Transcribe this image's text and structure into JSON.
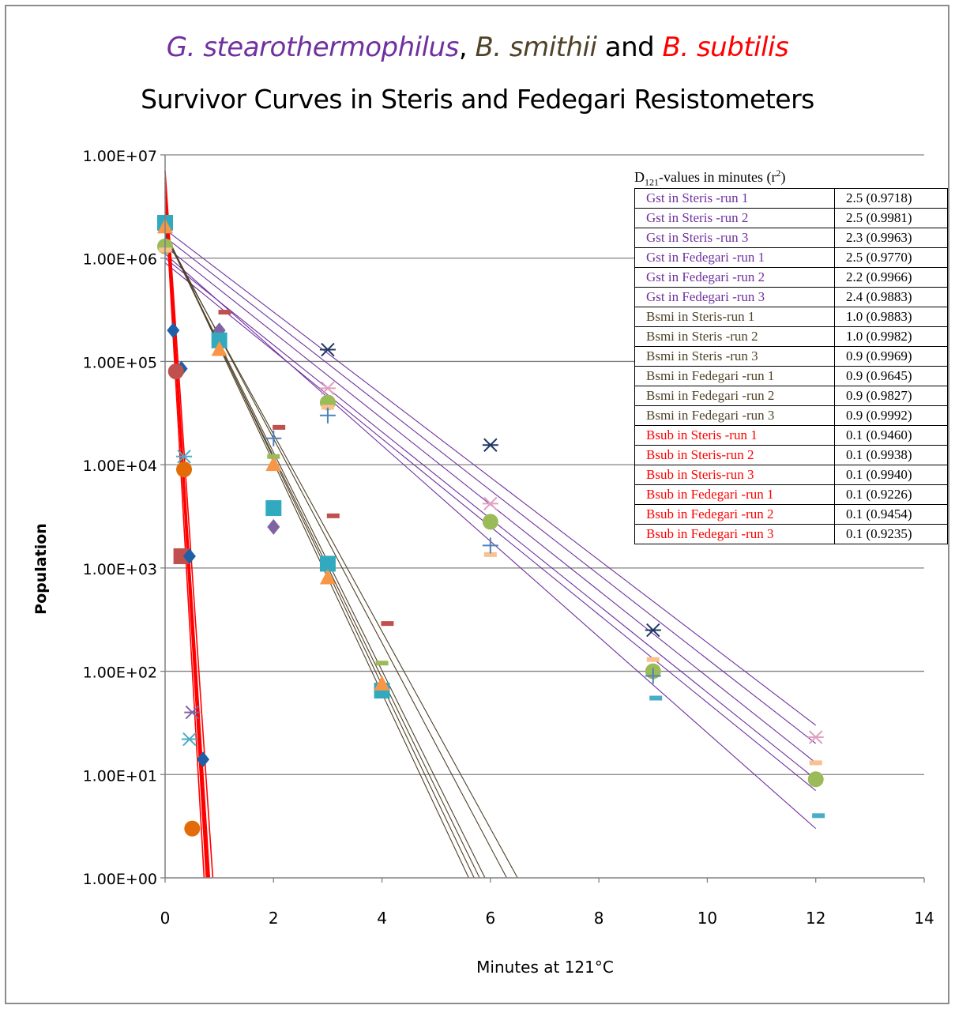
{
  "title": {
    "line1": {
      "species1": "G. stearothermophilus",
      "sep1": ", ",
      "species2": "B. smithii",
      "sep2": " and ",
      "species3": "B. subtilis"
    },
    "line2": "Survivor Curves in Steris and Fedegari Resistometers"
  },
  "colors": {
    "gst": "#7030a0",
    "bsmi": "#4f4228",
    "bsub": "#ff0000",
    "grid": "#808080"
  },
  "chart_data": {
    "type": "scatter",
    "x_scale": "linear",
    "y_scale": "log",
    "xlabel": "Minutes at 121°C",
    "ylabel": "Population",
    "xlim": [
      0,
      14
    ],
    "ylim": [
      1,
      10000000
    ],
    "x_ticks": [
      "0",
      "2",
      "4",
      "6",
      "8",
      "10",
      "12",
      "14"
    ],
    "y_ticks": [
      "1.00E+00",
      "1.00E+01",
      "1.00E+02",
      "1.00E+03",
      "1.00E+04",
      "1.00E+05",
      "1.00E+06",
      "1.00E+07"
    ],
    "grid": "horizontal",
    "legend": {
      "caption": {
        "main": "D",
        "sub": "121",
        "rest": "-values in minutes (r",
        "sup": "2",
        "end": ")"
      },
      "placement": "top-right",
      "rows": [
        {
          "name": "Gst in Steris -run 1",
          "value": "2.5 (0.9718)",
          "group": "gst"
        },
        {
          "name": "Gst in Steris -run 2",
          "value": "2.5 (0.9981)",
          "group": "gst"
        },
        {
          "name": "Gst in Steris -run 3",
          "value": "2.3 (0.9963)",
          "group": "gst"
        },
        {
          "name": "Gst in Fedegari -run 1",
          "value": "2.5 (0.9770)",
          "group": "gst"
        },
        {
          "name": "Gst in Fedegari -run 2",
          "value": "2.2 (0.9966)",
          "group": "gst"
        },
        {
          "name": "Gst in Fedegari -run 3",
          "value": "2.4 (0.9883)",
          "group": "gst"
        },
        {
          "name": "Bsmi in Steris-run 1",
          "value": "1.0 (0.9883)",
          "group": "bsmi"
        },
        {
          "name": "Bsmi in Steris -run 2",
          "value": "1.0 (0.9982)",
          "group": "bsmi"
        },
        {
          "name": "Bsmi in Steris -run 3",
          "value": "0.9 (0.9969)",
          "group": "bsmi"
        },
        {
          "name": "Bsmi in Fedegari -run 1",
          "value": "0.9 (0.9645)",
          "group": "bsmi"
        },
        {
          "name": "Bsmi in Fedegari -run 2",
          "value": "0.9 (0.9827)",
          "group": "bsmi"
        },
        {
          "name": "Bsmi in Fedegari -run 3",
          "value": "0.9 (0.9992)",
          "group": "bsmi"
        },
        {
          "name": "Bsub in Steris -run 1",
          "value": "0.1 (0.9460)",
          "group": "bsub"
        },
        {
          "name": "Bsub in Steris-run 2",
          "value": "0.1 (0.9938)",
          "group": "bsub"
        },
        {
          "name": "Bsub in Steris-run 3",
          "value": "0.1 (0.9940)",
          "group": "bsub"
        },
        {
          "name": "Bsub in Fedegari -run 1",
          "value": "0.1 (0.9226)",
          "group": "bsub"
        },
        {
          "name": "Bsub in Fedegari -run 2",
          "value": "0.1 (0.9454)",
          "group": "bsub"
        },
        {
          "name": "Bsub in Fedegari -run 3",
          "value": "0.1 (0.9235)",
          "group": "bsub"
        }
      ]
    },
    "trendlines": [
      {
        "group": "gst",
        "x": [
          0,
          12
        ],
        "y": [
          1900000,
          30
        ]
      },
      {
        "group": "gst",
        "x": [
          0,
          12
        ],
        "y": [
          1600000,
          20
        ]
      },
      {
        "group": "gst",
        "x": [
          0,
          12
        ],
        "y": [
          1300000,
          13
        ]
      },
      {
        "group": "gst",
        "x": [
          0,
          12
        ],
        "y": [
          1000000,
          9
        ]
      },
      {
        "group": "gst",
        "x": [
          0,
          12
        ],
        "y": [
          900000,
          7
        ]
      },
      {
        "group": "gst",
        "x": [
          0,
          12
        ],
        "y": [
          1100000,
          3
        ]
      },
      {
        "group": "bsmi",
        "x": [
          0,
          6.5
        ],
        "y": [
          1600000,
          1
        ]
      },
      {
        "group": "bsmi",
        "x": [
          0,
          6.3
        ],
        "y": [
          1700000,
          1
        ]
      },
      {
        "group": "bsmi",
        "x": [
          0,
          5.9
        ],
        "y": [
          1700000,
          1
        ]
      },
      {
        "group": "bsmi",
        "x": [
          0,
          5.6
        ],
        "y": [
          1800000,
          1
        ]
      },
      {
        "group": "bsmi",
        "x": [
          0,
          5.7
        ],
        "y": [
          1800000,
          1
        ]
      },
      {
        "group": "bsmi",
        "x": [
          0,
          5.8
        ],
        "y": [
          1700000,
          1
        ]
      },
      {
        "group": "bsub",
        "x": [
          0,
          0.88
        ],
        "y": [
          7000000,
          1
        ]
      },
      {
        "group": "bsub",
        "x": [
          0,
          0.82
        ],
        "y": [
          6000000,
          1
        ]
      },
      {
        "group": "bsub",
        "x": [
          0,
          0.78
        ],
        "y": [
          5000000,
          1
        ]
      },
      {
        "group": "bsub",
        "x": [
          0,
          0.72
        ],
        "y": [
          4000000,
          1
        ]
      },
      {
        "group": "bsub",
        "x": [
          0,
          0.76
        ],
        "y": [
          5500000,
          1
        ]
      },
      {
        "group": "bsub",
        "x": [
          0,
          0.8
        ],
        "y": [
          4500000,
          1
        ]
      }
    ],
    "points": [
      {
        "x": 0,
        "y": 2200000,
        "shape": "square",
        "color": "#31a9bf"
      },
      {
        "x": 0,
        "y": 2000000,
        "shape": "triangle",
        "color": "#f79646"
      },
      {
        "x": 0,
        "y": 1300000,
        "shape": "circle",
        "color": "#9bbb59"
      },
      {
        "x": 0,
        "y": 1200000,
        "shape": "dash",
        "color": "#fac090"
      },
      {
        "x": 0.15,
        "y": 200000,
        "shape": "diamond",
        "color": "#1f5fa8"
      },
      {
        "x": 0.3,
        "y": 85000,
        "shape": "diamond",
        "color": "#1f5fa8"
      },
      {
        "x": 0.2,
        "y": 80000,
        "shape": "circle",
        "color": "#c0504d"
      },
      {
        "x": 0.35,
        "y": 9000,
        "shape": "circle",
        "color": "#e36c09"
      },
      {
        "x": 0.35,
        "y": 12000,
        "shape": "x",
        "color": "#4bacc6"
      },
      {
        "x": 0.3,
        "y": 1300,
        "shape": "square",
        "color": "#c0504d"
      },
      {
        "x": 0.45,
        "y": 1300,
        "shape": "diamond",
        "color": "#1f5fa8"
      },
      {
        "x": 0.5,
        "y": 40,
        "shape": "x",
        "color": "#8064a2"
      },
      {
        "x": 0.45,
        "y": 22,
        "shape": "x",
        "color": "#4bacc6"
      },
      {
        "x": 0.7,
        "y": 14,
        "shape": "diamond",
        "color": "#1f5fa8"
      },
      {
        "x": 0.5,
        "y": 3,
        "shape": "circle",
        "color": "#e36c09"
      },
      {
        "x": 1,
        "y": 200000,
        "shape": "diamond",
        "color": "#8064a2"
      },
      {
        "x": 1,
        "y": 160000,
        "shape": "square",
        "color": "#31a9bf"
      },
      {
        "x": 1,
        "y": 130000,
        "shape": "triangle",
        "color": "#f79646"
      },
      {
        "x": 1.1,
        "y": 300000,
        "shape": "dash",
        "color": "#c0504d"
      },
      {
        "x": 2,
        "y": 3800,
        "shape": "square",
        "color": "#31a9bf"
      },
      {
        "x": 2,
        "y": 2500,
        "shape": "diamond",
        "color": "#8064a2"
      },
      {
        "x": 2,
        "y": 10000,
        "shape": "triangle",
        "color": "#f79646"
      },
      {
        "x": 2,
        "y": 12000,
        "shape": "dash",
        "color": "#9bbb59"
      },
      {
        "x": 2,
        "y": 18000,
        "shape": "plus",
        "color": "#4f81bd"
      },
      {
        "x": 2.1,
        "y": 23000,
        "shape": "dash",
        "color": "#c0504d"
      },
      {
        "x": 3,
        "y": 1100,
        "shape": "square",
        "color": "#31a9bf"
      },
      {
        "x": 3,
        "y": 800,
        "shape": "triangle",
        "color": "#f79646"
      },
      {
        "x": 3.1,
        "y": 3200,
        "shape": "dash",
        "color": "#c0504d"
      },
      {
        "x": 3,
        "y": 130000,
        "shape": "x",
        "color": "#1f3864"
      },
      {
        "x": 3,
        "y": 55000,
        "shape": "x",
        "color": "#e0a0c0"
      },
      {
        "x": 3,
        "y": 40000,
        "shape": "circle",
        "color": "#9bbb59"
      },
      {
        "x": 3,
        "y": 36000,
        "shape": "dash",
        "color": "#fac090"
      },
      {
        "x": 3,
        "y": 30000,
        "shape": "plus",
        "color": "#4f81bd"
      },
      {
        "x": 4,
        "y": 65,
        "shape": "square",
        "color": "#31a9bf"
      },
      {
        "x": 4,
        "y": 75,
        "shape": "triangle",
        "color": "#f79646"
      },
      {
        "x": 4,
        "y": 120,
        "shape": "dash",
        "color": "#9bbb59"
      },
      {
        "x": 4.1,
        "y": 290,
        "shape": "dash",
        "color": "#c0504d"
      },
      {
        "x": 6,
        "y": 15500,
        "shape": "x",
        "color": "#1f3864"
      },
      {
        "x": 6,
        "y": 4200,
        "shape": "x",
        "color": "#e0a0c0"
      },
      {
        "x": 6,
        "y": 2800,
        "shape": "circle",
        "color": "#9bbb59"
      },
      {
        "x": 6,
        "y": 1350,
        "shape": "dash",
        "color": "#fac090"
      },
      {
        "x": 6,
        "y": 1650,
        "shape": "plus",
        "color": "#4f81bd"
      },
      {
        "x": 9,
        "y": 250,
        "shape": "x",
        "color": "#1f3864"
      },
      {
        "x": 9,
        "y": 130,
        "shape": "dash",
        "color": "#fac090"
      },
      {
        "x": 9,
        "y": 100,
        "shape": "circle",
        "color": "#9bbb59"
      },
      {
        "x": 9,
        "y": 90,
        "shape": "plus",
        "color": "#4f81bd"
      },
      {
        "x": 9.05,
        "y": 55,
        "shape": "dash",
        "color": "#4bacc6"
      },
      {
        "x": 12,
        "y": 23,
        "shape": "x",
        "color": "#e0a0c0"
      },
      {
        "x": 12,
        "y": 13,
        "shape": "dash",
        "color": "#fac090"
      },
      {
        "x": 12,
        "y": 9,
        "shape": "circle",
        "color": "#9bbb59"
      },
      {
        "x": 12.05,
        "y": 4,
        "shape": "dash",
        "color": "#4bacc6"
      }
    ]
  }
}
